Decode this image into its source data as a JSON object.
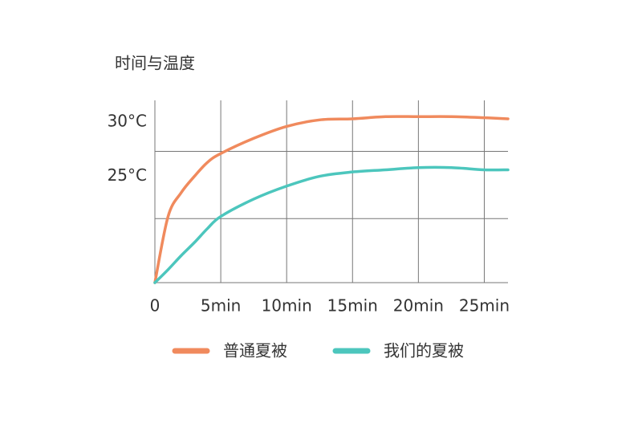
{
  "chart_data": {
    "type": "line",
    "title": "时间与温度",
    "x": [
      0,
      1,
      2,
      3,
      4,
      5,
      7.5,
      10,
      12.5,
      15,
      17.5,
      20,
      22.5,
      25,
      26.8
    ],
    "series": [
      {
        "name": "普通夏被",
        "color": "#f08a5d",
        "values": [
          15.2,
          21.3,
          23.5,
          25,
          26.3,
          27.1,
          28.5,
          29.6,
          30.2,
          30.3,
          30.5,
          30.5,
          30.5,
          30.4,
          30.3
        ]
      },
      {
        "name": "我们的夏被",
        "color": "#4cc6bd",
        "values": [
          15.2,
          16.4,
          17.7,
          18.9,
          20.2,
          21.3,
          22.9,
          24.1,
          25,
          25.4,
          25.6,
          25.8,
          25.8,
          25.6,
          25.6
        ]
      }
    ],
    "xlim": [
      0,
      26.8
    ],
    "xticks": [
      0,
      {
        "value": 5,
        "label": "5min"
      },
      {
        "value": 10,
        "label": "10min"
      },
      {
        "value": 15,
        "label": "15min"
      },
      {
        "value": 20,
        "label": "20min"
      },
      {
        "value": 25,
        "label": "25min"
      }
    ],
    "ylim": [
      15.2,
      32
    ],
    "yticks": [
      {
        "value": 30,
        "label": "30°C"
      },
      {
        "value": 25,
        "label": "25°C"
      }
    ],
    "ygrid": [
      21.1,
      27.3
    ],
    "grid": true
  }
}
